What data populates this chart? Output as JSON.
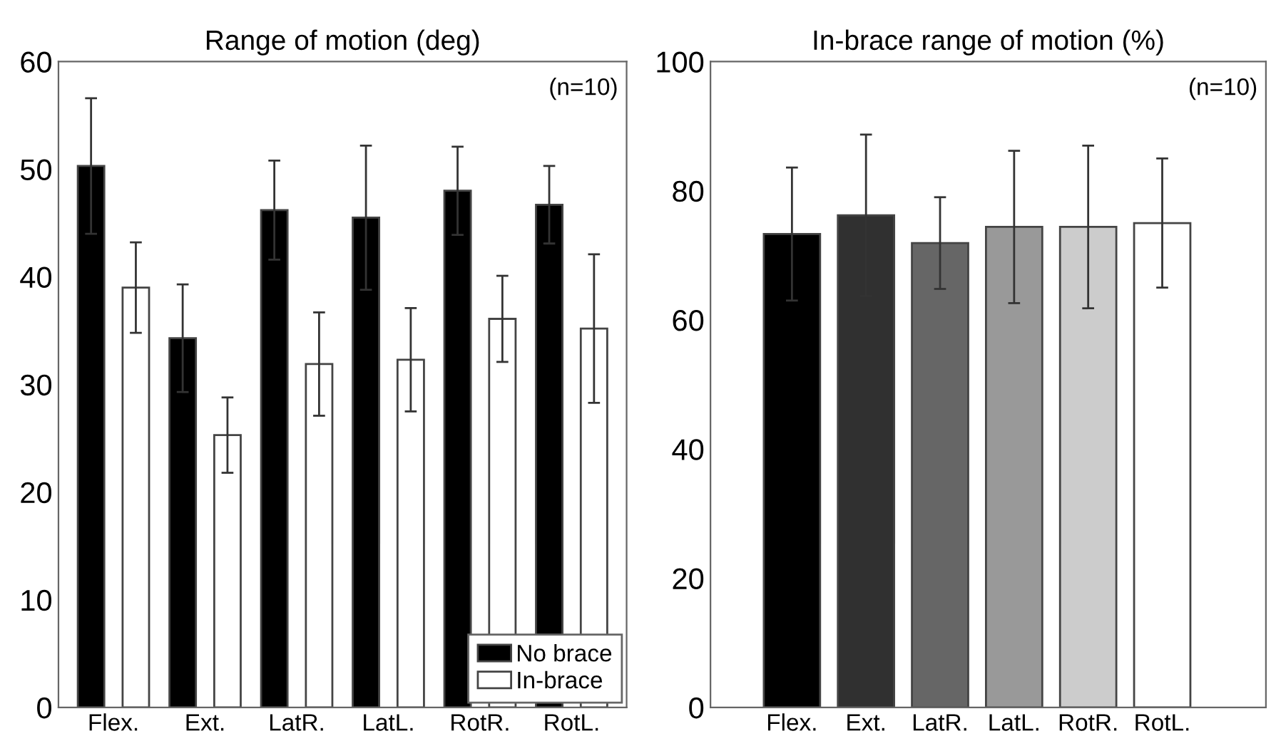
{
  "chart_data": [
    {
      "type": "bar",
      "title": "Range of motion (deg)",
      "categories": [
        "Flex.",
        "Ext.",
        "LatR.",
        "LatL.",
        "RotR.",
        "RotL."
      ],
      "series": [
        {
          "name": "No brace",
          "color": "#000000",
          "values": [
            50.3,
            34.3,
            46.2,
            45.5,
            48.0,
            46.7
          ],
          "errors": [
            6.3,
            5.0,
            4.6,
            6.7,
            4.1,
            3.6
          ]
        },
        {
          "name": "In-brace",
          "color": "#ffffff",
          "values": [
            39.0,
            25.3,
            31.9,
            32.3,
            36.1,
            35.2
          ],
          "errors": [
            4.2,
            3.5,
            4.8,
            4.8,
            4.0,
            6.9
          ]
        }
      ],
      "ylim": [
        0,
        60
      ],
      "yticks": [
        0,
        10,
        20,
        30,
        40,
        50,
        60
      ],
      "annotations": [
        "(n=10)"
      ],
      "legend": "bottom right",
      "grid": false
    },
    {
      "type": "bar",
      "title": "In-brace range of motion (%)",
      "categories": [
        "Flex.",
        "Ext.",
        "LatR.",
        "LatL.",
        "RotR.",
        "RotL."
      ],
      "values": [
        73.3,
        76.2,
        71.9,
        74.4,
        74.4,
        75.0
      ],
      "errors": [
        10.3,
        12.5,
        7.1,
        11.8,
        12.6,
        10.0
      ],
      "colors": [
        "#000000",
        "#303030",
        "#666666",
        "#999999",
        "#cccccc",
        "#ffffff"
      ],
      "ylim": [
        0,
        100
      ],
      "yticks": [
        0,
        20,
        40,
        60,
        80,
        100
      ],
      "annotations": [
        "(n=10)"
      ],
      "grid": false
    }
  ]
}
